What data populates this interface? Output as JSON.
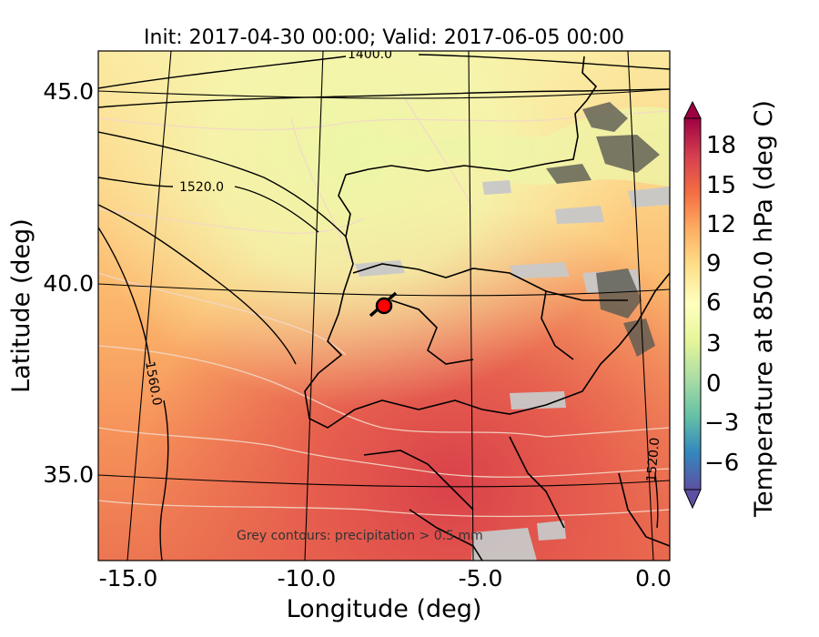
{
  "title": "Init: 2017-04-30 00:00; Valid: 2017-06-05 00:00",
  "xlabel": "Longitude (deg)",
  "ylabel": "Latitude (deg)",
  "xticks": [
    "-15.0",
    "-10.0",
    "-5.0",
    "0.0"
  ],
  "yticks": [
    "45.0",
    "40.0",
    "35.0"
  ],
  "colorbar": {
    "label": "Temperature at 850.0 hPa (deg C)",
    "ticks": [
      "18",
      "15",
      "12",
      "9",
      "6",
      "3",
      "0",
      "−3",
      "−6"
    ],
    "colormap": "Spectral_r"
  },
  "geopotential_labels": [
    "1400.0",
    "1520.0",
    "1560.0",
    "1520.0"
  ],
  "note": "Grey contours: precipitation > 0.5 mm",
  "marker": {
    "lon": -7.6,
    "lat": 39.3,
    "color": "#ff0000"
  }
}
